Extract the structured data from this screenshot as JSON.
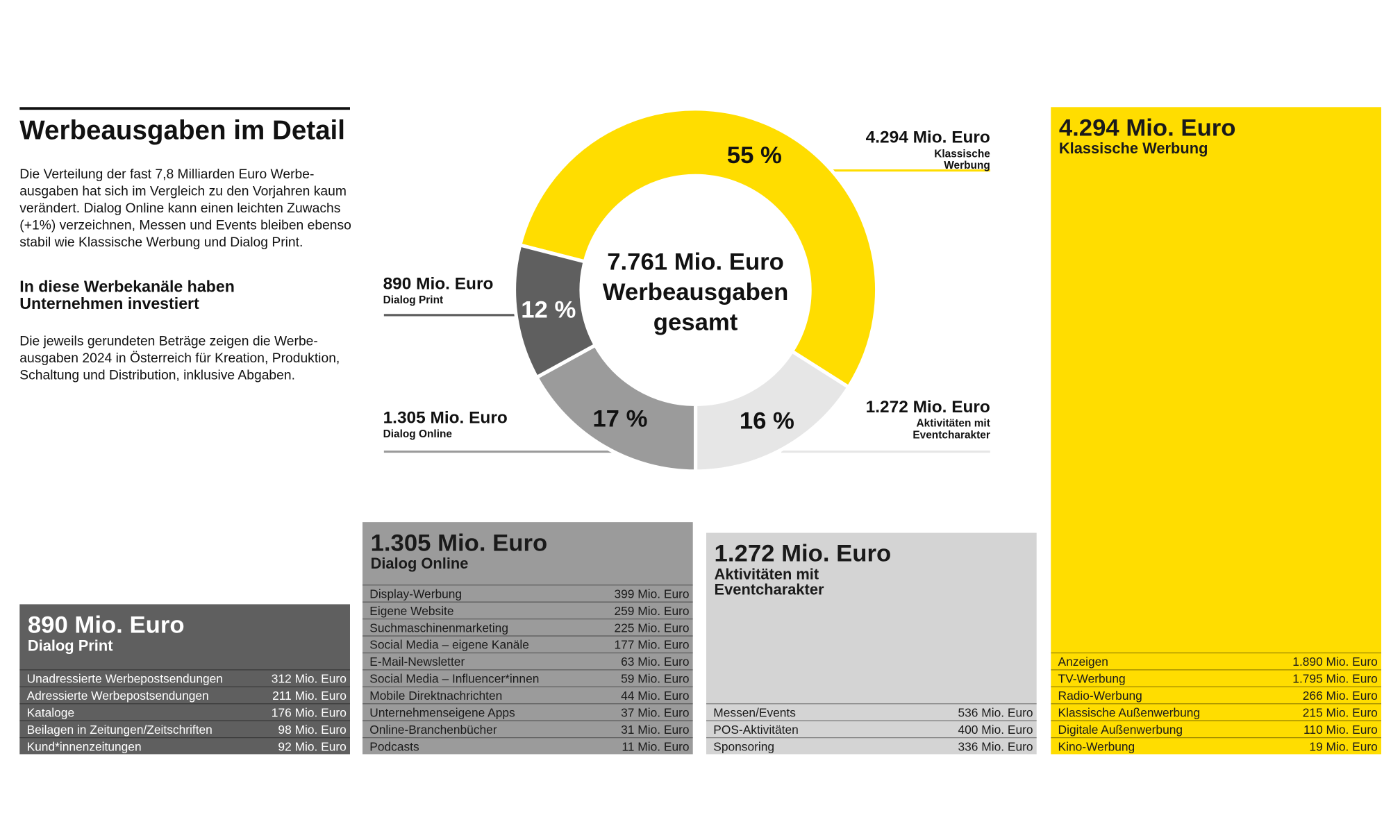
{
  "header": {
    "title": "Werbeausgaben im Detail",
    "intro": "Die Verteilung der fast 7,8 Milliarden Euro Werbe­ausgaben hat sich im Vergleich zu den Vorjahren kaum verändert. Dialog Online kann einen leichten Zuwachs (+1%) verzeichnen, Messen und Events bleiben ebenso stabil wie Klassische Werbung und Dialog Print.",
    "subtitle": "In diese Werbekanäle haben Unternehmen investiert",
    "note": "Die jeweils gerundeten Beträge zeigen die Werbe­ausgaben 2024 in Österreich für Kreation, Produktion, Schaltung und Distribution, inklusive Abgaben."
  },
  "chart_data": {
    "type": "donut",
    "center_label": "7.761 Mio. Euro Werbeausgaben gesamt",
    "categories": [
      "Klassische Werbung",
      "Aktivitäten mit Eventcharakter",
      "Dialog Online",
      "Dialog Print"
    ],
    "values": [
      55,
      16,
      17,
      12
    ],
    "value_labels": [
      "55 %",
      "16 %",
      "17 %",
      "12 %"
    ],
    "amounts": [
      "4.294 Mio. Euro",
      "1.272 Mio. Euro",
      "1.305 Mio. Euro",
      "890 Mio. Euro"
    ],
    "colors": [
      "#ffdd00",
      "#e6e6e6",
      "#9b9b9b",
      "#5f5f5f"
    ]
  },
  "panels": [
    {
      "amount": "890 Mio. Euro",
      "name": "Dialog Print",
      "color": "#5f5f5f",
      "text_color": "#ffffff",
      "rows": [
        [
          "Unadressierte Werbepostsendungen",
          "312 Mio. Euro"
        ],
        [
          "Adressierte Werbepostsendungen",
          "211 Mio. Euro"
        ],
        [
          "Kataloge",
          "176 Mio. Euro"
        ],
        [
          "Beilagen in Zeitungen/Zeitschriften",
          "98 Mio. Euro"
        ],
        [
          "Kund*innenzeitungen",
          "92 Mio. Euro"
        ]
      ]
    },
    {
      "amount": "1.305 Mio. Euro",
      "name": "Dialog Online",
      "color": "#9b9b9b",
      "text_color": "#1a1a1a",
      "rows": [
        [
          "Display-Werbung",
          "399 Mio. Euro"
        ],
        [
          "Eigene Website",
          "259 Mio. Euro"
        ],
        [
          "Suchmaschinenmarketing",
          "225 Mio. Euro"
        ],
        [
          "Social Media – eigene Kanäle",
          "177 Mio. Euro"
        ],
        [
          "E-Mail-Newsletter",
          "63 Mio. Euro"
        ],
        [
          "Social Media – Influencer*innen",
          "59 Mio. Euro"
        ],
        [
          "Mobile Direktnachrichten",
          "44 Mio. Euro"
        ],
        [
          "Unternehmenseigene Apps",
          "37 Mio. Euro"
        ],
        [
          "Online-Branchenbücher",
          "31 Mio. Euro"
        ],
        [
          "Podcasts",
          "11 Mio. Euro"
        ]
      ]
    },
    {
      "amount": "1.272 Mio. Euro",
      "name": "Aktivitäten mit Eventcharakter",
      "color": "#d4d4d4",
      "text_color": "#1a1a1a",
      "rows": [
        [
          "Messen/Events",
          "536 Mio. Euro"
        ],
        [
          "POS-Aktivitäten",
          "400 Mio. Euro"
        ],
        [
          "Sponsoring",
          "336 Mio. Euro"
        ]
      ]
    },
    {
      "amount": "4.294 Mio. Euro",
      "name": "Klassische Werbung",
      "color": "#ffdd00",
      "text_color": "#1a1a1a",
      "rows": [
        [
          "Anzeigen",
          "1.890 Mio. Euro"
        ],
        [
          "TV-Werbung",
          "1.795 Mio. Euro"
        ],
        [
          "Radio-Werbung",
          "266 Mio. Euro"
        ],
        [
          "Klassische Außenwerbung",
          "215 Mio. Euro"
        ],
        [
          "Digitale Außenwerbung",
          "110 Mio. Euro"
        ],
        [
          "Kino-Werbung",
          "19 Mio. Euro"
        ]
      ]
    }
  ]
}
